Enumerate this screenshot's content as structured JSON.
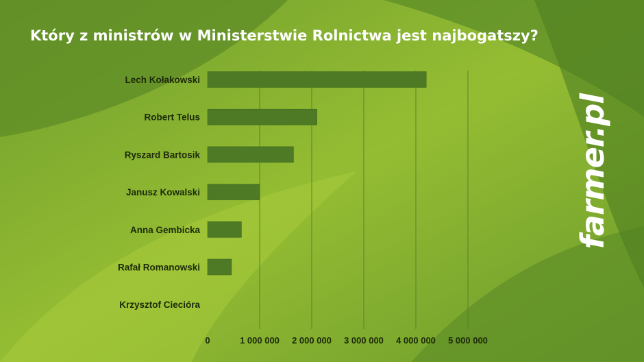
{
  "brand": {
    "logo_text": "farmer.pl"
  },
  "colors": {
    "bar": "#4e7a26",
    "grid": "#5f7f2a",
    "text": "#1c2a08",
    "title": "#ffffff"
  },
  "chart_data": {
    "type": "bar",
    "orientation": "horizontal",
    "title": "Który z ministrów w Ministerstwie Rolnictwa jest najbogatszy?",
    "xlabel": "",
    "ylabel": "",
    "categories": [
      "Lech Kołakowski",
      "Robert Telus",
      "Ryszard Bartosik",
      "Janusz Kowalski",
      "Anna Gembicka",
      "Rafał Romanowski",
      "Krzysztof Ciecióra"
    ],
    "values": [
      4200000,
      2100000,
      1650000,
      1000000,
      650000,
      460000,
      0
    ],
    "xlim": [
      0,
      5000000
    ],
    "ticks": [
      0,
      1000000,
      2000000,
      3000000,
      4000000,
      5000000
    ],
    "tick_labels": [
      "0",
      "1 000 000",
      "2 000 000",
      "3 000 000",
      "4 000 000",
      "5 000 000"
    ],
    "grid": true,
    "legend": "none"
  }
}
